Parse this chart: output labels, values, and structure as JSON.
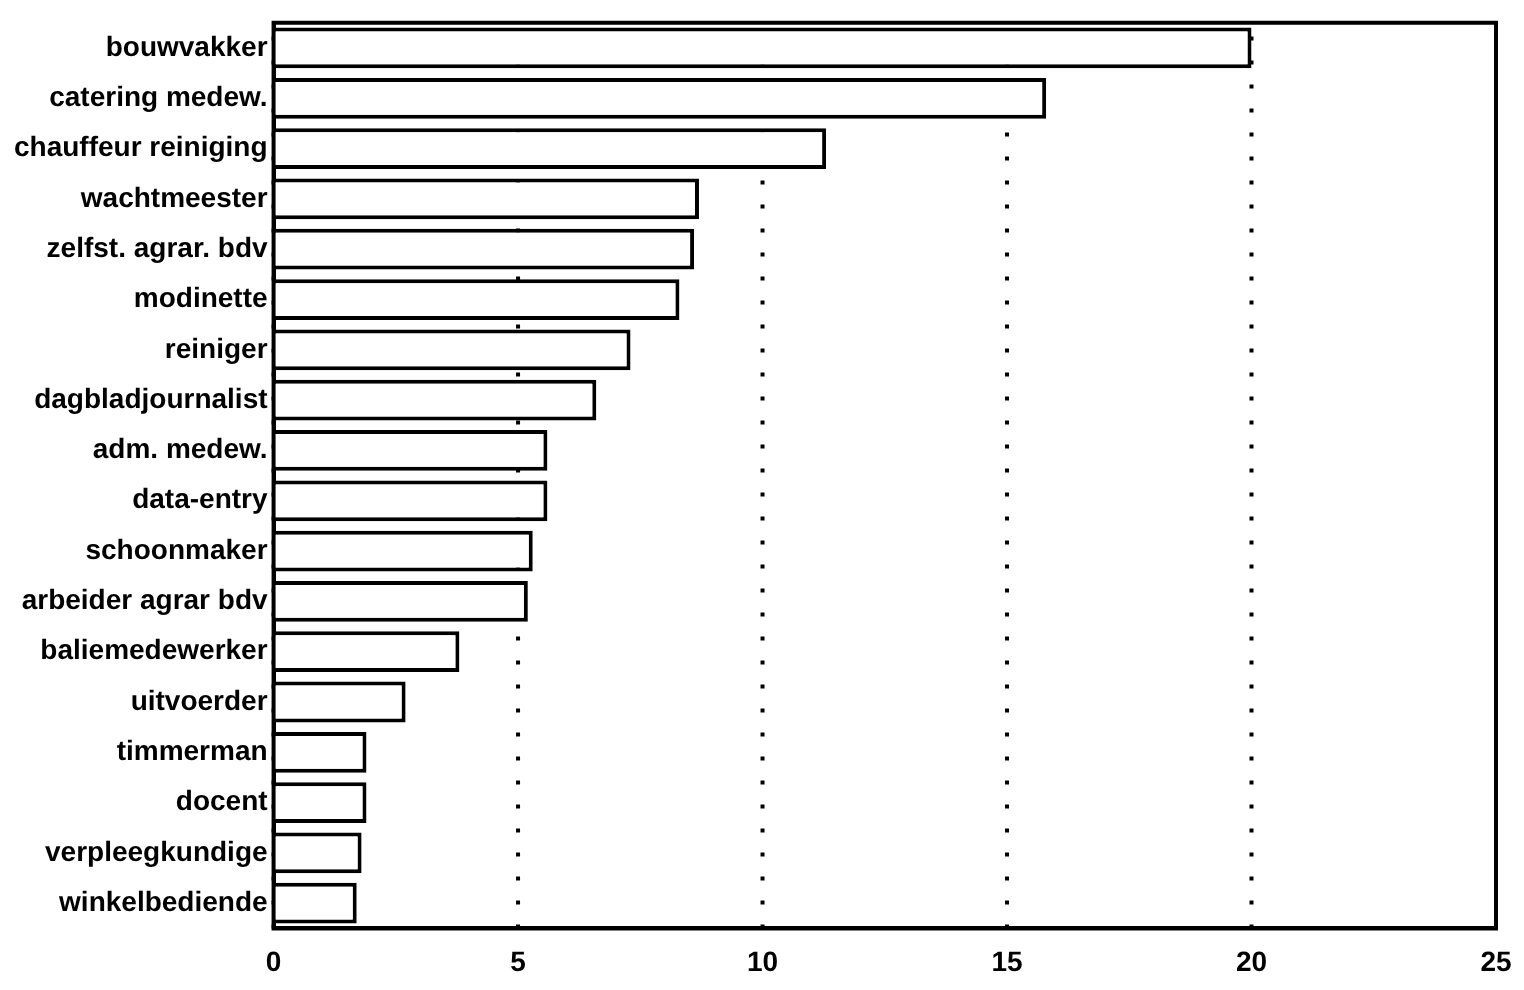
{
  "chart_data": {
    "type": "bar",
    "orientation": "horizontal",
    "categories": [
      "bouwvakker",
      "catering medew.",
      "chauffeur reiniging",
      "wachtmeester",
      "zelfst. agrar. bdv",
      "modinette",
      "reiniger",
      "dagbladjournalist",
      "adm. medew.",
      "data-entry",
      "schoonmaker",
      "arbeider agrar bdv",
      "baliemedewerker",
      "uitvoerder",
      "timmerman",
      "docent",
      "verpleegkundige",
      "winkelbediende"
    ],
    "values": [
      20.0,
      15.8,
      11.3,
      8.7,
      8.6,
      8.3,
      7.3,
      6.6,
      5.6,
      5.6,
      5.3,
      5.2,
      3.8,
      2.7,
      1.9,
      1.9,
      1.8,
      1.7
    ],
    "color": "#ffffff",
    "xlim": [
      0,
      25
    ],
    "xticks": [
      0,
      5,
      10,
      15,
      20,
      25
    ],
    "grid": "x",
    "legend": false
  }
}
